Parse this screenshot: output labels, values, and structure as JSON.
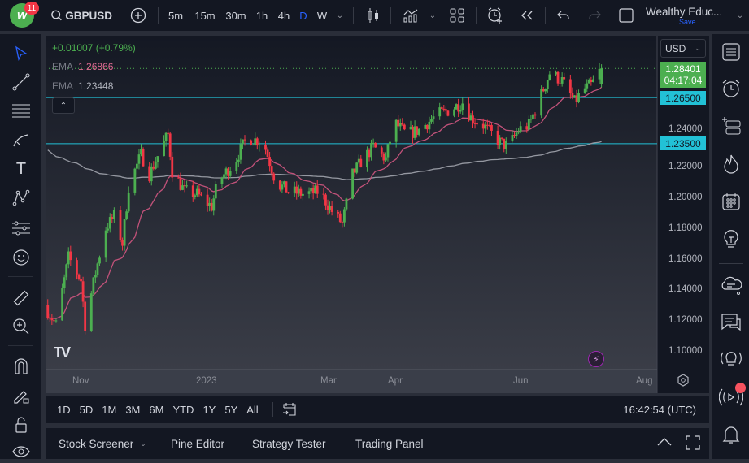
{
  "topbar": {
    "logo_badge": "11",
    "symbol": "GBPUSD",
    "intervals": [
      "5m",
      "15m",
      "30m",
      "1h",
      "4h",
      "D",
      "W"
    ],
    "active_interval": "D",
    "layout_name": "Wealthy Educ...",
    "save_label": "Save"
  },
  "legend": {
    "change": "+0.01007 (+0.79%)",
    "ema1_label": "EMA",
    "ema1_value": "1.26866",
    "ema2_label": "EMA",
    "ema2_value": "1.23448"
  },
  "price_axis": {
    "currency": "USD",
    "ticks": [
      "1.24000",
      "1.22000",
      "1.20000",
      "1.18000",
      "1.16000",
      "1.14000",
      "1.12000",
      "1.10000"
    ],
    "last_price": "1.28401",
    "countdown": "04:17:04",
    "levels": [
      "1.26500",
      "1.23500"
    ]
  },
  "time_axis": {
    "labels": [
      "Nov",
      "2023",
      "Mar",
      "Apr",
      "Jun",
      "Aug"
    ]
  },
  "range_bar": {
    "ranges": [
      "1D",
      "5D",
      "1M",
      "3M",
      "6M",
      "YTD",
      "1Y",
      "5Y",
      "All"
    ],
    "clock": "16:42:54 (UTC)"
  },
  "panel": {
    "tabs": [
      "Stock Screener",
      "Pine Editor",
      "Strategy Tester",
      "Trading Panel"
    ]
  },
  "colors": {
    "up": "#4caf50",
    "down": "#f23645",
    "ema_fast": "#c2527a",
    "ema_slow": "#9598a1",
    "level": "#22c1d6",
    "accent": "#2962ff"
  },
  "chart_data": {
    "type": "candlestick",
    "symbol": "GBPUSD",
    "interval": "D",
    "ylim": [
      1.09,
      1.3
    ],
    "levels": [
      1.265,
      1.235
    ],
    "close_path": [
      [
        "2022-10-17",
        1.126
      ],
      [
        "2022-10-21",
        1.117
      ],
      [
        "2022-10-27",
        1.161
      ],
      [
        "2022-11-02",
        1.146
      ],
      [
        "2022-11-04",
        1.117
      ],
      [
        "2022-11-09",
        1.151
      ],
      [
        "2022-11-14",
        1.18
      ],
      [
        "2022-11-18",
        1.188
      ],
      [
        "2022-11-22",
        1.17
      ],
      [
        "2022-11-25",
        1.207
      ],
      [
        "2022-12-01",
        1.228
      ],
      [
        "2022-12-05",
        1.215
      ],
      [
        "2022-12-11",
        1.233
      ],
      [
        "2022-12-14",
        1.241
      ],
      [
        "2022-12-16",
        1.217
      ],
      [
        "2022-12-22",
        1.204
      ],
      [
        "2022-12-28",
        1.202
      ],
      [
        "2023-01-04",
        1.194
      ],
      [
        "2023-01-07",
        1.21
      ],
      [
        "2023-01-15",
        1.223
      ],
      [
        "2023-01-21",
        1.239
      ],
      [
        "2023-01-29",
        1.236
      ],
      [
        "2023-02-04",
        1.21
      ],
      [
        "2023-02-10",
        1.204
      ],
      [
        "2023-02-18",
        1.202
      ],
      [
        "2023-02-25",
        1.204
      ],
      [
        "2023-03-03",
        1.191
      ],
      [
        "2023-03-08",
        1.183
      ],
      [
        "2023-03-13",
        1.215
      ],
      [
        "2023-03-17",
        1.223
      ],
      [
        "2023-03-23",
        1.233
      ],
      [
        "2023-03-29",
        1.225
      ],
      [
        "2023-04-02",
        1.249
      ],
      [
        "2023-04-08",
        1.241
      ],
      [
        "2023-04-14",
        1.244
      ],
      [
        "2023-04-23",
        1.254
      ],
      [
        "2023-04-29",
        1.257
      ],
      [
        "2023-05-05",
        1.262
      ],
      [
        "2023-05-09",
        1.252
      ],
      [
        "2023-05-15",
        1.247
      ],
      [
        "2023-05-23",
        1.236
      ],
      [
        "2023-05-27",
        1.233
      ],
      [
        "2023-06-01",
        1.244
      ],
      [
        "2023-06-06",
        1.247
      ],
      [
        "2023-06-10",
        1.26
      ],
      [
        "2023-06-16",
        1.281
      ],
      [
        "2023-06-22",
        1.276
      ],
      [
        "2023-06-28",
        1.262
      ],
      [
        "2023-07-02",
        1.27
      ],
      [
        "2023-07-06",
        1.273
      ],
      [
        "2023-07-11",
        1.28401
      ]
    ]
  }
}
